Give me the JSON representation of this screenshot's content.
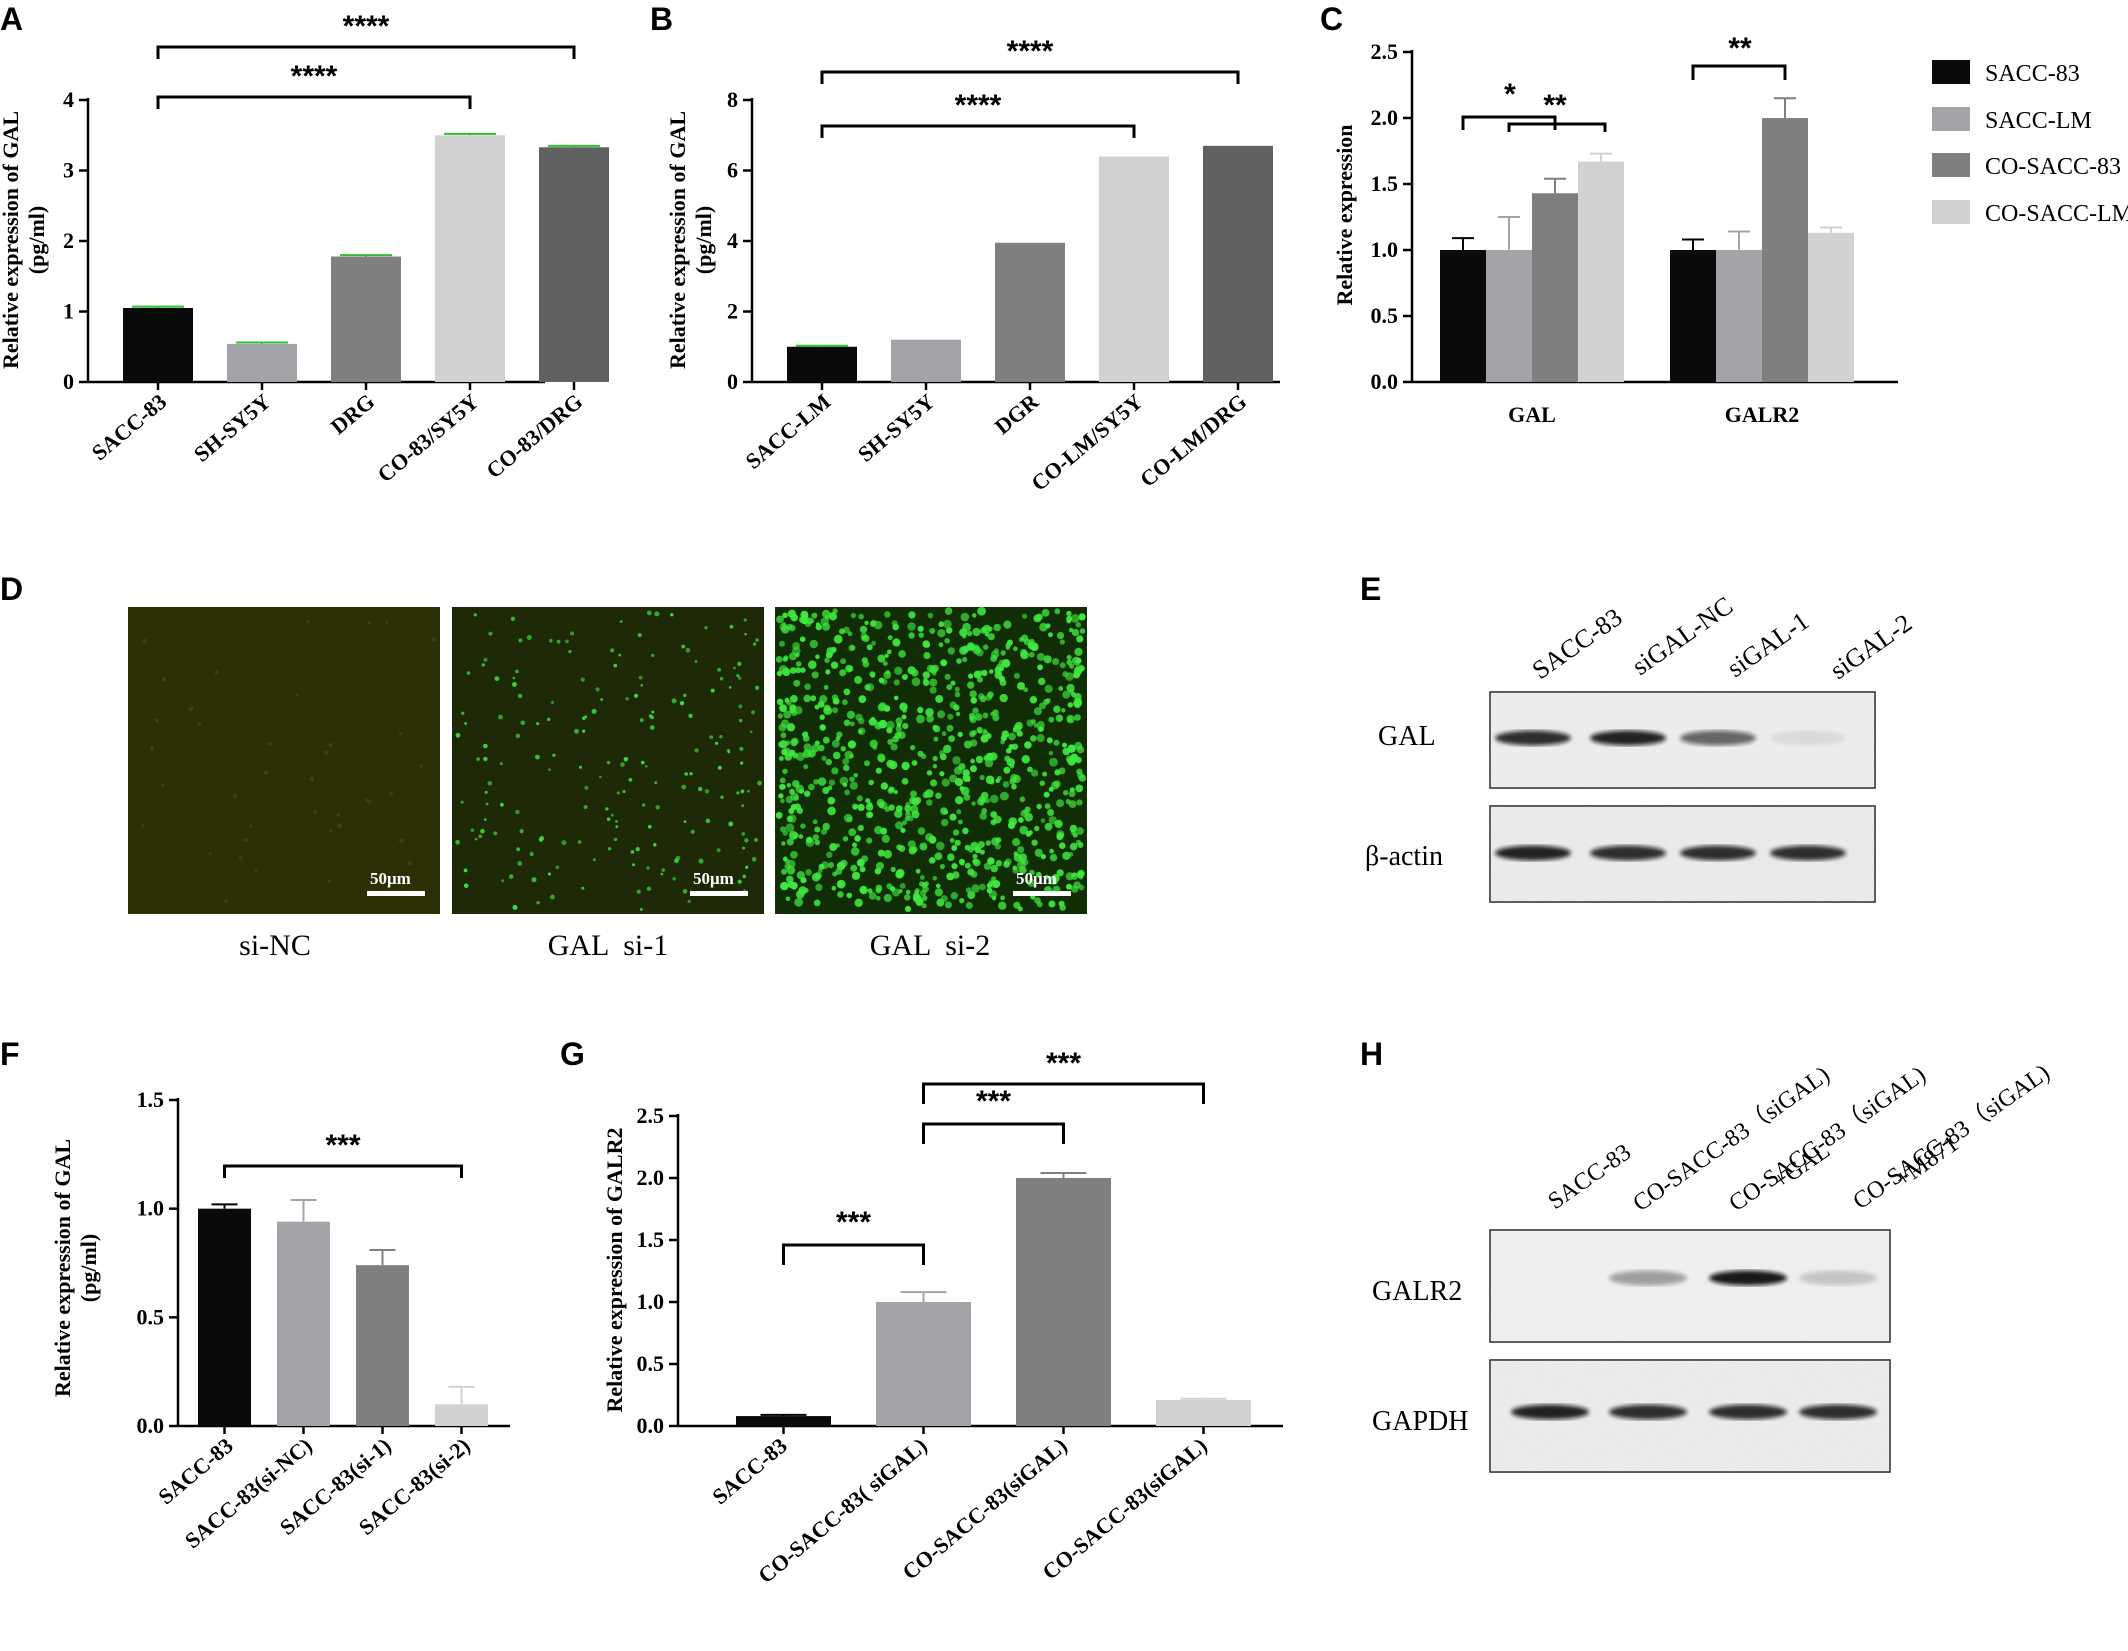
{
  "panel_labels": [
    "A",
    "B",
    "C",
    "D",
    "E",
    "F",
    "G",
    "H"
  ],
  "colors": {
    "black": "#0a0a0a",
    "light_gray": "#a3a3a8",
    "mid_gray": "#7f7f7f",
    "pale_gray": "#d2d2d2",
    "dark_gray": "#616161",
    "error_green": "#2ec02e",
    "fluor_green": "#3fe83f"
  },
  "chart_data": [
    {
      "panel": "A",
      "type": "bar",
      "ylabel_line1": "Relative expression of GAL",
      "ylabel_line2": "(pg/ml)",
      "ylim": [
        0,
        4
      ],
      "yticks": [
        "0",
        "1",
        "2",
        "3",
        "4"
      ],
      "categories": [
        "SACC-83",
        "SH-SY5Y",
        "DRG",
        "CO-83/SY5Y",
        "CO-83/DRG"
      ],
      "values": [
        1.05,
        0.54,
        1.78,
        3.5,
        3.33
      ],
      "errors": [
        0.02,
        0.02,
        0.02,
        0.02,
        0.02
      ],
      "bar_colors": [
        "#0a0a0a",
        "#a3a3a8",
        "#7f7f7f",
        "#d2d2d2",
        "#616161"
      ],
      "significance": [
        {
          "from": 0,
          "to": 3,
          "label": "****"
        },
        {
          "from": 0,
          "to": 4,
          "label": "****"
        }
      ]
    },
    {
      "panel": "B",
      "type": "bar",
      "ylabel_line1": "Relative expression of GAL",
      "ylabel_line2": "(pg/ml)",
      "ylim": [
        0,
        8
      ],
      "yticks": [
        "0",
        "2",
        "4",
        "6",
        "8"
      ],
      "categories": [
        "SACC-LM",
        "SH-SY5Y",
        "DGR",
        "CO-LM/SY5Y",
        "CO-LM/DRG"
      ],
      "values": [
        1.0,
        1.2,
        3.95,
        6.4,
        6.7
      ],
      "errors": [
        0.03,
        0,
        0,
        0,
        0
      ],
      "bar_colors": [
        "#0a0a0a",
        "#a3a3a8",
        "#7f7f7f",
        "#d2d2d2",
        "#616161"
      ],
      "significance": [
        {
          "from": 0,
          "to": 3,
          "label": "****"
        },
        {
          "from": 0,
          "to": 4,
          "label": "****"
        }
      ]
    },
    {
      "panel": "C",
      "type": "bar",
      "ylabel": "Relative expression",
      "ylim": [
        0,
        2.5
      ],
      "yticks": [
        "0.0",
        "0.5",
        "1.0",
        "1.5",
        "2.0",
        "2.5"
      ],
      "categories": [
        "GAL",
        "GALR2"
      ],
      "series": [
        {
          "name": "SACC-83",
          "values": [
            1.0,
            1.0
          ],
          "errors": [
            0.09,
            0.08
          ],
          "color": "#0a0a0a"
        },
        {
          "name": "SACC-LM",
          "values": [
            1.0,
            1.0
          ],
          "errors": [
            0.25,
            0.14
          ],
          "color": "#a3a3a8"
        },
        {
          "name": "CO-SACC-83",
          "values": [
            1.43,
            2.0
          ],
          "errors": [
            0.11,
            0.15
          ],
          "color": "#7f7f7f"
        },
        {
          "name": "CO-SACC-LM",
          "values": [
            1.67,
            1.13
          ],
          "errors": [
            0.06,
            0.04
          ],
          "color": "#d2d2d2"
        }
      ],
      "legend_position": "right",
      "significance_labels": [
        "*",
        "**",
        "**"
      ]
    },
    {
      "panel": "F",
      "type": "bar",
      "ylabel_line1": "Relative expression of GAL",
      "ylabel_line2": "(pg/ml)",
      "ylim": [
        0,
        1.5
      ],
      "yticks": [
        "0.0",
        "0.5",
        "1.0",
        "1.5"
      ],
      "categories": [
        "SACC-83",
        "SACC-83(si-NC)",
        "SACC-83(si-1)",
        "SACC-83(si-2)"
      ],
      "values": [
        1.0,
        0.94,
        0.74,
        0.1
      ],
      "errors": [
        0.02,
        0.1,
        0.07,
        0.08
      ],
      "bar_colors": [
        "#0a0a0a",
        "#a3a3a8",
        "#7f7f7f",
        "#d2d2d2"
      ],
      "significance": [
        {
          "from": 0,
          "to": 3,
          "label": "***"
        }
      ]
    },
    {
      "panel": "G",
      "type": "bar",
      "ylabel": "Relative expression of GALR2",
      "ylim": [
        0,
        2.5
      ],
      "yticks": [
        "0.0",
        "0.5",
        "1.0",
        "1.5",
        "2.0",
        "2.5"
      ],
      "categories": [
        "SACC-83",
        "CO-SACC-83( siGAL)",
        "CO-SACC-83(siGAL)",
        "CO-SACC-83(siGAL)"
      ],
      "values": [
        0.08,
        1.0,
        2.0,
        0.21
      ],
      "errors": [
        0.01,
        0.08,
        0.04,
        0.01
      ],
      "bar_colors": [
        "#0a0a0a",
        "#a3a3a8",
        "#7f7f7f",
        "#d2d2d2"
      ],
      "significance": [
        {
          "from": 0,
          "to": 1,
          "label": "***"
        },
        {
          "from": 1,
          "to": 2,
          "label": "***"
        },
        {
          "from": 1,
          "to": 3,
          "label": "***"
        }
      ]
    }
  ],
  "panel_d": {
    "images": [
      {
        "label": "si-NC",
        "scale": "50μm",
        "density": 0.004,
        "bg": "#2d3005"
      },
      {
        "label": "GAL  si-1",
        "scale": "50μm",
        "density": 0.02,
        "bg": "#1e2907"
      },
      {
        "label": "GAL  si-2",
        "scale": "50μm",
        "density": 0.09,
        "bg": "#102d05"
      }
    ]
  },
  "panel_e": {
    "lanes": [
      "SACC-83",
      "siGAL-NC",
      "siGAL-1",
      "siGAL-2"
    ],
    "rows": [
      {
        "label": "GAL",
        "intensities": [
          0.85,
          0.9,
          0.6,
          0.08
        ]
      },
      {
        "label": "β-actin",
        "intensities": [
          0.9,
          0.85,
          0.85,
          0.85
        ]
      }
    ]
  },
  "panel_h": {
    "lanes": [
      {
        "line1": "SACC-83",
        "line2": ""
      },
      {
        "line1": "CO-SACC-83（siGAL)",
        "line2": ""
      },
      {
        "line1": "CO-SACC-83（siGAL)",
        "line2": "+GAL"
      },
      {
        "line1": "CO-SACC-83（siGAL)",
        "line2": "+M871"
      }
    ],
    "rows": [
      {
        "label": "GALR2",
        "intensities": [
          0.0,
          0.35,
          0.95,
          0.18
        ]
      },
      {
        "label": "GAPDH",
        "intensities": [
          0.9,
          0.85,
          0.85,
          0.85
        ]
      }
    ]
  }
}
